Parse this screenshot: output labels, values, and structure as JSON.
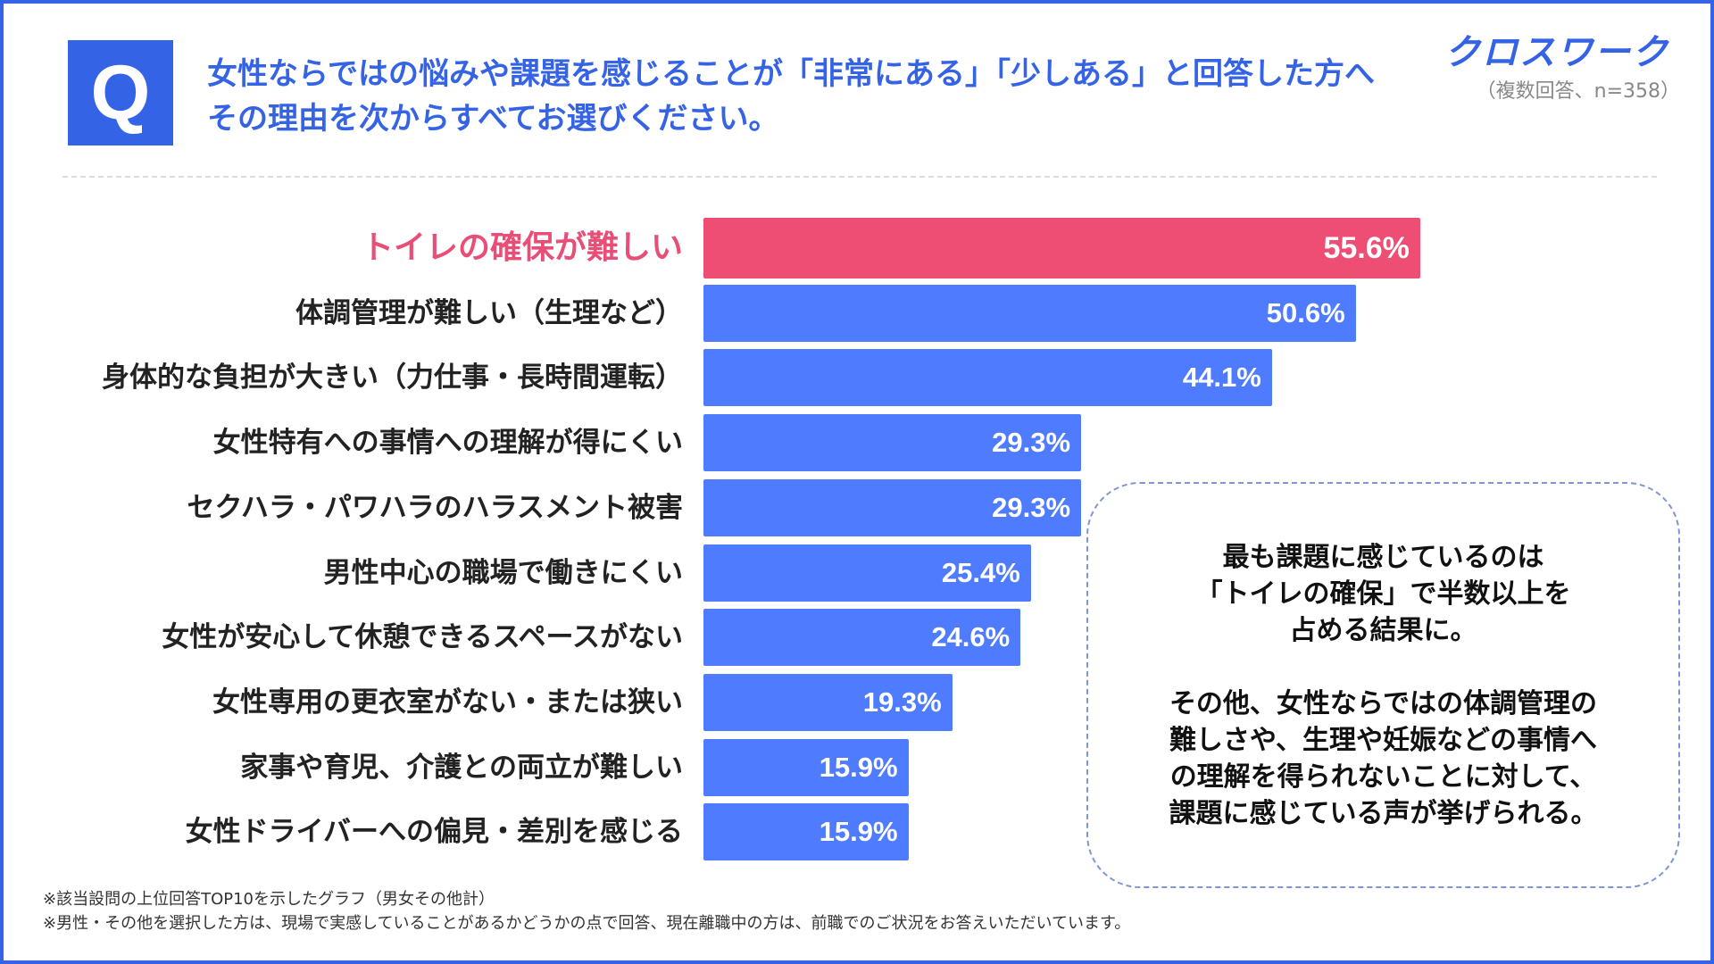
{
  "question": {
    "badge": "Q",
    "line1": "女性ならではの悩みや課題を感じることが「非常にある」「少しある」と回答した方へ",
    "line2": "その理由を次からすべてお選びください。"
  },
  "brand": "クロスワーク",
  "sample_note": "（複数回答、n=358）",
  "chart_data": {
    "type": "bar",
    "orientation": "horizontal",
    "title": "",
    "categories": [
      "トイレの確保が難しい",
      "体調管理が難しい（生理など）",
      "身体的な負担が大きい（力仕事・長時間運転）",
      "女性特有への事情への理解が得にくい",
      "セクハラ・パワハラのハラスメント被害",
      "男性中心の職場で働きにくい",
      "女性が安心して休憩できるスペースがない",
      "女性専用の更衣室がない・または狭い",
      "家事や育児、介護との両立が難しい",
      "女性ドライバーへの偏見・差別を感じる"
    ],
    "values": [
      55.6,
      50.6,
      44.1,
      29.3,
      29.3,
      25.4,
      24.6,
      19.3,
      15.9,
      15.9
    ],
    "value_labels": [
      "55.6%",
      "50.6%",
      "44.1%",
      "29.3%",
      "29.3%",
      "25.4%",
      "24.6%",
      "19.3%",
      "15.9%",
      "15.9%"
    ],
    "unit": "%",
    "xlim": [
      0,
      100
    ],
    "highlight_index": 0,
    "colors": {
      "highlight": "#ee4e74",
      "default": "#4f7cff"
    }
  },
  "callout": {
    "line1": "最も課題に感じているのは",
    "line2": "「トイレの確保」で半数以上を",
    "line3": "占める結果に。",
    "line4": "その他、女性ならではの体調管理の",
    "line5": "難しさや、生理や妊娠などの事情へ",
    "line6": "の理解を得られないことに対して、",
    "line7": "課題に感じている声が挙げられる。"
  },
  "footnotes": {
    "line1": "※該当設問の上位回答TOP10を示したグラフ（男女その他計）",
    "line2": "※男性・その他を選択した方は、現場で実感していることがあるかどうかの点で回答、現在離職中の方は、前職でのご状況をお答えいただいています。"
  }
}
